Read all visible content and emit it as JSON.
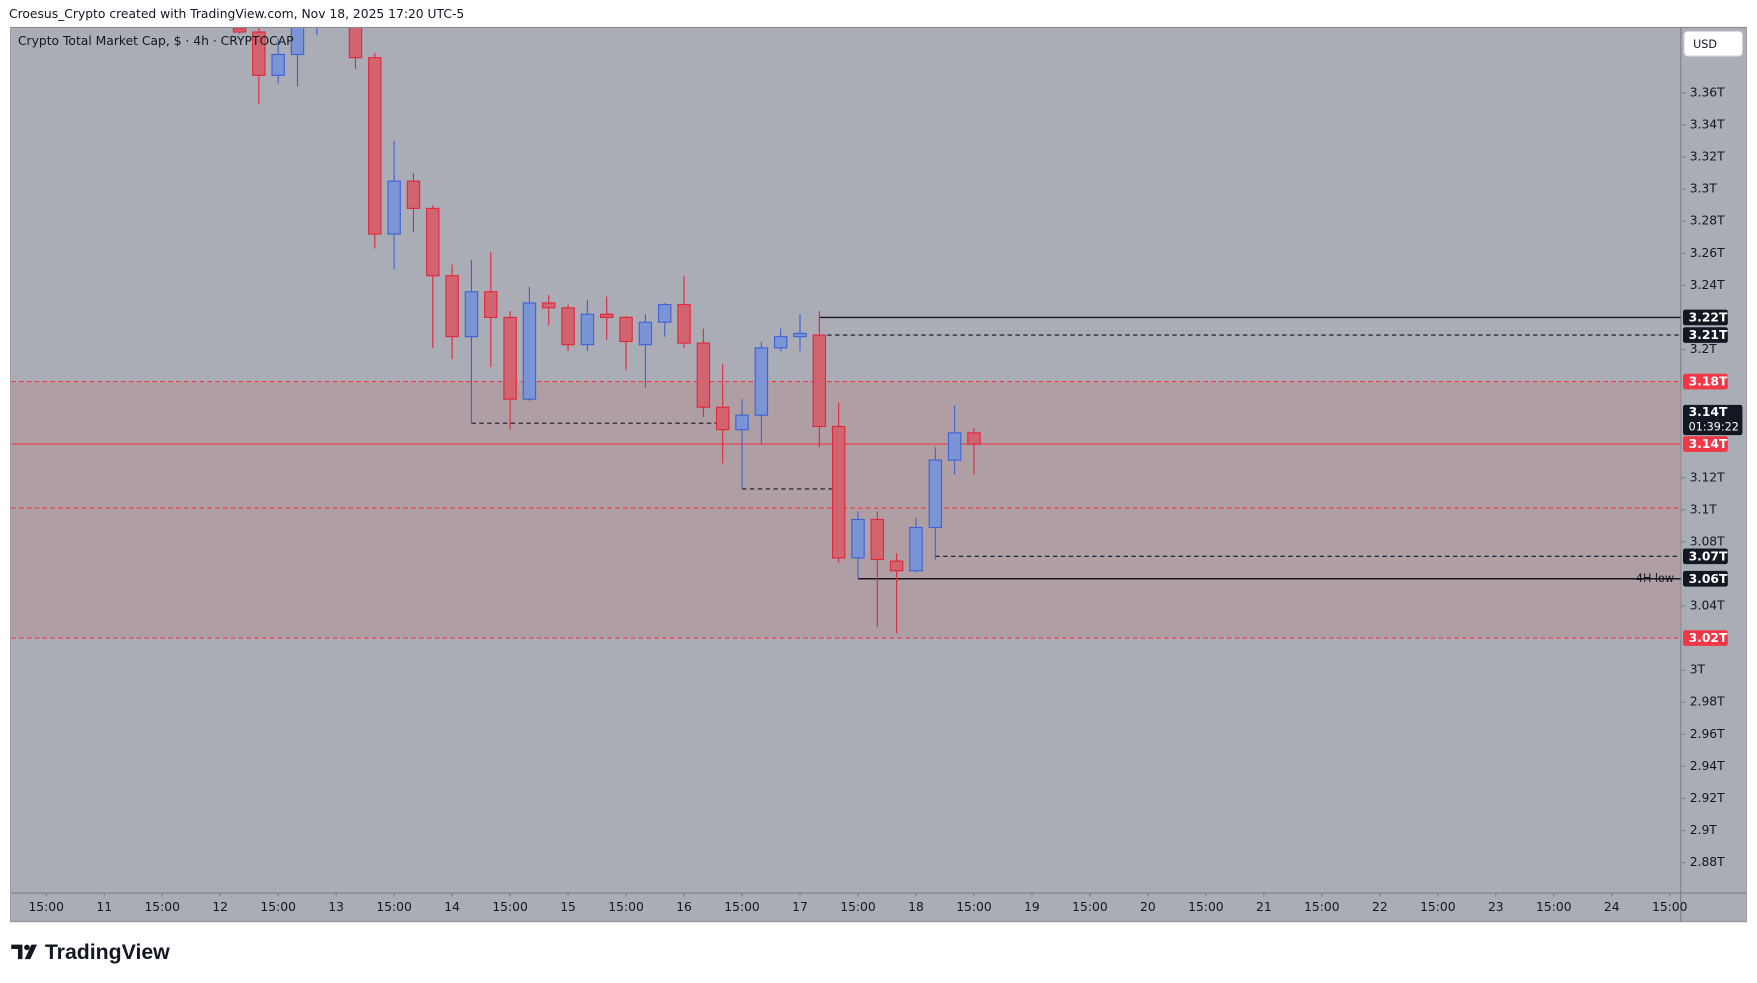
{
  "header": {
    "credit": "Croesus_Crypto created with TradingView.com, Nov 18, 2025 17:20 UTC-5",
    "currency": "USD",
    "logo": "TradingView"
  },
  "chart_data": {
    "type": "candlestick",
    "title": "Crypto Total Market Cap, $ · 4h · CRYPTOCAP",
    "x": [
      7,
      8,
      9,
      10,
      11,
      13,
      14,
      15,
      16,
      17,
      18,
      19,
      20,
      21,
      22,
      23,
      24,
      25,
      26,
      27,
      28,
      29,
      30,
      31,
      32,
      33,
      34,
      35,
      36,
      37,
      38,
      39,
      40,
      41,
      42,
      43,
      44,
      45
    ],
    "open": [
      3.4,
      3.398,
      3.371,
      3.384,
      3.41,
      3.42,
      3.382,
      3.272,
      3.305,
      3.288,
      3.246,
      3.208,
      3.236,
      3.22,
      3.169,
      3.229,
      3.226,
      3.203,
      3.222,
      3.22,
      3.203,
      3.217,
      3.228,
      3.204,
      3.164,
      3.15,
      3.159,
      3.201,
      3.208,
      3.209,
      3.152,
      3.07,
      3.094,
      3.068,
      3.062,
      3.089,
      3.131,
      3.148
    ],
    "high": [
      3.4,
      3.403,
      3.394,
      3.42,
      3.44,
      3.43,
      3.385,
      3.33,
      3.31,
      3.29,
      3.253,
      3.256,
      3.261,
      3.224,
      3.239,
      3.234,
      3.228,
      3.231,
      3.233,
      3.221,
      3.222,
      3.229,
      3.246,
      3.213,
      3.191,
      3.169,
      3.205,
      3.213,
      3.222,
      3.224,
      3.167,
      3.099,
      3.099,
      3.073,
      3.095,
      3.139,
      3.165,
      3.151
    ],
    "low": [
      3.397,
      3.353,
      3.366,
      3.364,
      3.396,
      3.375,
      3.263,
      3.25,
      3.273,
      3.201,
      3.194,
      3.154,
      3.189,
      3.15,
      3.168,
      3.215,
      3.199,
      3.199,
      3.206,
      3.187,
      3.176,
      3.208,
      3.201,
      3.158,
      3.129,
      3.113,
      3.141,
      3.199,
      3.199,
      3.139,
      3.067,
      3.057,
      3.027,
      3.023,
      3.061,
      3.069,
      3.122,
      3.122
    ],
    "close": [
      3.398,
      3.371,
      3.384,
      3.41,
      3.43,
      3.382,
      3.272,
      3.305,
      3.288,
      3.246,
      3.208,
      3.236,
      3.22,
      3.169,
      3.229,
      3.226,
      3.203,
      3.222,
      3.22,
      3.205,
      3.217,
      3.228,
      3.204,
      3.164,
      3.15,
      3.159,
      3.201,
      3.208,
      3.21,
      3.152,
      3.07,
      3.094,
      3.069,
      3.062,
      3.089,
      3.131,
      3.148,
      3.141
    ],
    "up_color": "#7b94d6",
    "up_border": "#3f62d6",
    "down_color": "#d2646f",
    "down_border": "#e0283c",
    "xlim": [
      -4.81,
      81.57
    ],
    "xticks": [
      {
        "value": -3,
        "label": "15:00"
      },
      {
        "value": 0,
        "label": "11"
      },
      {
        "value": 3,
        "label": "15:00"
      },
      {
        "value": 6,
        "label": "12"
      },
      {
        "value": 9,
        "label": "15:00"
      },
      {
        "value": 12,
        "label": "13"
      },
      {
        "value": 15,
        "label": "15:00"
      },
      {
        "value": 18,
        "label": "14"
      },
      {
        "value": 21,
        "label": "15:00"
      },
      {
        "value": 24,
        "label": "15"
      },
      {
        "value": 27,
        "label": "15:00"
      },
      {
        "value": 30,
        "label": "16"
      },
      {
        "value": 33,
        "label": "15:00"
      },
      {
        "value": 36,
        "label": "17"
      },
      {
        "value": 39,
        "label": "15:00"
      },
      {
        "value": 42,
        "label": "18"
      },
      {
        "value": 45,
        "label": "15:00"
      },
      {
        "value": 48,
        "label": "19"
      },
      {
        "value": 51,
        "label": "15:00"
      },
      {
        "value": 54,
        "label": "20"
      },
      {
        "value": 57,
        "label": "15:00"
      },
      {
        "value": 60,
        "label": "21"
      },
      {
        "value": 63,
        "label": "15:00"
      },
      {
        "value": 66,
        "label": "22"
      },
      {
        "value": 69,
        "label": "15:00"
      },
      {
        "value": 72,
        "label": "23"
      },
      {
        "value": 75,
        "label": "15:00"
      },
      {
        "value": 78,
        "label": "24"
      },
      {
        "value": 81,
        "label": "15:00"
      }
    ],
    "ylim": [
      2.861,
      3.4005
    ],
    "yticks": [
      {
        "value": 3.36,
        "label": "3.36T"
      },
      {
        "value": 3.34,
        "label": "3.34T"
      },
      {
        "value": 3.32,
        "label": "3.32T"
      },
      {
        "value": 3.3,
        "label": "3.3T"
      },
      {
        "value": 3.28,
        "label": "3.28T"
      },
      {
        "value": 3.26,
        "label": "3.26T"
      },
      {
        "value": 3.24,
        "label": "3.24T"
      },
      {
        "value": 3.2,
        "label": "3.2T"
      },
      {
        "value": 3.12,
        "label": "3.12T"
      },
      {
        "value": 3.1,
        "label": "3.1T"
      },
      {
        "value": 3.08,
        "label": "3.08T"
      },
      {
        "value": 3.04,
        "label": "3.04T"
      },
      {
        "value": 3,
        "label": "3T"
      },
      {
        "value": 2.98,
        "label": "2.98T"
      },
      {
        "value": 2.96,
        "label": "2.96T"
      },
      {
        "value": 2.94,
        "label": "2.94T"
      },
      {
        "value": 2.92,
        "label": "2.92T"
      },
      {
        "value": 2.9,
        "label": "2.9T"
      },
      {
        "value": 2.88,
        "label": "2.88T"
      }
    ],
    "zone": {
      "from": 3.02,
      "to": 3.18,
      "color": "#b09ca1"
    },
    "levels": [
      {
        "value": 3.22,
        "label": "3.22T",
        "color": "#131722",
        "style": "solid",
        "start": 37
      },
      {
        "value": 3.209,
        "label": "3.21T",
        "color": "#131722",
        "style": "dashed",
        "start": 37
      },
      {
        "value": 3.18,
        "label": "3.18T",
        "color": "#f23645",
        "style": "dashed"
      },
      {
        "value": 3.141,
        "label": "3.14T",
        "color": "#f23645",
        "style": "solid"
      },
      {
        "value": 3.101,
        "color": "#f23645",
        "style": "dashed"
      },
      {
        "value": 3.071,
        "label": "3.07T",
        "color": "#131722",
        "style": "dashed",
        "start": 43
      },
      {
        "value": 3.057,
        "label": "3.06T",
        "color": "#131722",
        "style": "solid",
        "start": 39,
        "note": "4H low"
      },
      {
        "value": 3.02,
        "label": "3.02T",
        "color": "#f23645",
        "style": "dashed"
      },
      {
        "value": 3.154,
        "color": "#131722",
        "style": "dashed",
        "start": 19,
        "end": 31.7
      },
      {
        "value": 3.113,
        "color": "#131722",
        "style": "dashed",
        "start": 33,
        "end": 37.8
      }
    ],
    "last_price": {
      "value": 3.141,
      "label": "3.14T",
      "countdown": "01:39:22"
    }
  }
}
